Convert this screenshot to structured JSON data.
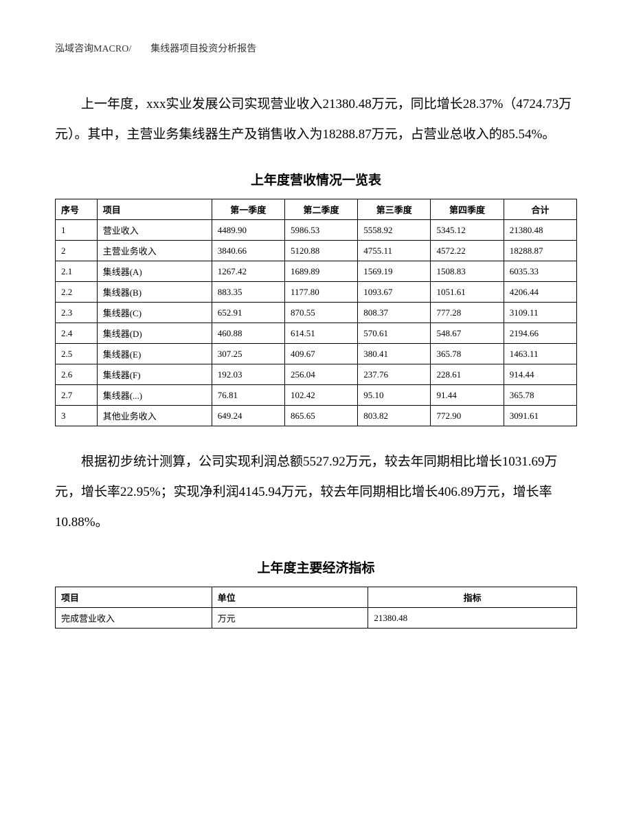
{
  "header": "泓域咨询MACRO/　　集线器项目投资分析报告",
  "paragraph1": "上一年度，xxx实业发展公司实现营业收入21380.48万元，同比增长28.37%（4724.73万元）。其中，主营业务集线器生产及销售收入为18288.87万元，占营业总收入的85.54%。",
  "table1": {
    "title": "上年度营收情况一览表",
    "headers": [
      "序号",
      "项目",
      "第一季度",
      "第二季度",
      "第三季度",
      "第四季度",
      "合计"
    ],
    "rows": [
      [
        "1",
        "营业收入",
        "4489.90",
        "5986.53",
        "5558.92",
        "5345.12",
        "21380.48"
      ],
      [
        "2",
        "主营业务收入",
        "3840.66",
        "5120.88",
        "4755.11",
        "4572.22",
        "18288.87"
      ],
      [
        "2.1",
        "集线器(A)",
        "1267.42",
        "1689.89",
        "1569.19",
        "1508.83",
        "6035.33"
      ],
      [
        "2.2",
        "集线器(B)",
        "883.35",
        "1177.80",
        "1093.67",
        "1051.61",
        "4206.44"
      ],
      [
        "2.3",
        "集线器(C)",
        "652.91",
        "870.55",
        "808.37",
        "777.28",
        "3109.11"
      ],
      [
        "2.4",
        "集线器(D)",
        "460.88",
        "614.51",
        "570.61",
        "548.67",
        "2194.66"
      ],
      [
        "2.5",
        "集线器(E)",
        "307.25",
        "409.67",
        "380.41",
        "365.78",
        "1463.11"
      ],
      [
        "2.6",
        "集线器(F)",
        "192.03",
        "256.04",
        "237.76",
        "228.61",
        "914.44"
      ],
      [
        "2.7",
        "集线器(...)",
        "76.81",
        "102.42",
        "95.10",
        "91.44",
        "365.78"
      ],
      [
        "3",
        "其他业务收入",
        "649.24",
        "865.65",
        "803.82",
        "772.90",
        "3091.61"
      ]
    ]
  },
  "paragraph2": "根据初步统计测算，公司实现利润总额5527.92万元，较去年同期相比增长1031.69万元，增长率22.95%；实现净利润4145.94万元，较去年同期相比增长406.89万元，增长率10.88%。",
  "table2": {
    "title": "上年度主要经济指标",
    "headers": [
      "项目",
      "单位",
      "指标"
    ],
    "rows": [
      [
        "完成营业收入",
        "万元",
        "21380.48"
      ]
    ]
  }
}
